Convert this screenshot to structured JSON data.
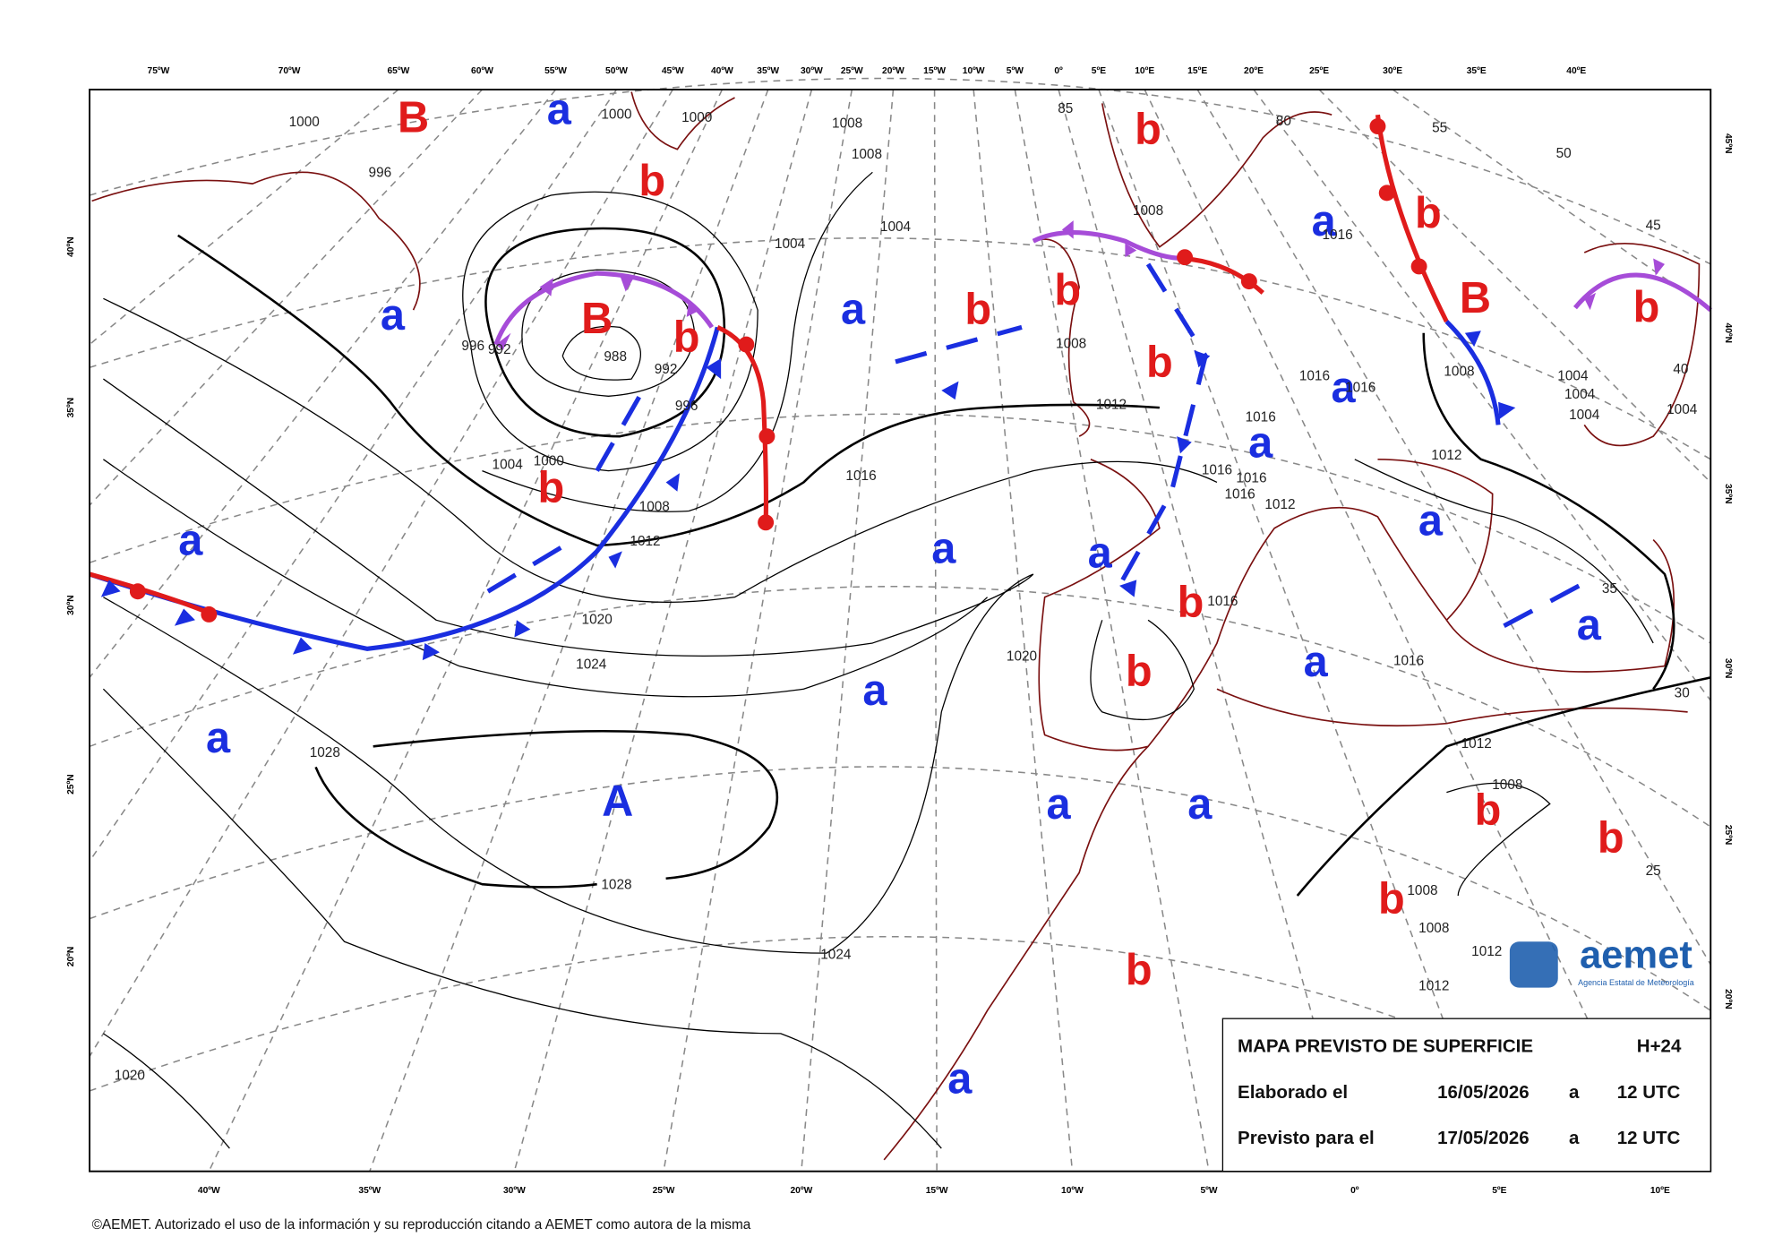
{
  "top_lon_labels": [
    "75ºW",
    "70ºW",
    "65ºW",
    "60ºW",
    "55ºW",
    "50ºW",
    "45ºW",
    "40ºW",
    "35ºW",
    "30ºW",
    "25ºW",
    "20ºW",
    "15ºW",
    "10ºW",
    "5ºW",
    "0º",
    "5ºE",
    "10ºE",
    "15ºE",
    "20ºE",
    "25ºE",
    "30ºE",
    "35ºE",
    "40ºE"
  ],
  "bottom_lon_labels": [
    "40ºW",
    "35ºW",
    "30ºW",
    "25ºW",
    "20ºW",
    "15ºW",
    "10ºW",
    "5ºW",
    "0º",
    "5ºE",
    "10ºE"
  ],
  "left_lat_labels": [
    "40ºN",
    "35ºN",
    "30ºN",
    "25ºN",
    "20ºN"
  ],
  "right_lat_labels": [
    "45ºN",
    "40ºN",
    "35ºN",
    "30ºN",
    "25ºN",
    "20ºN"
  ],
  "centers": [
    "B",
    "a",
    "b",
    "a",
    "B",
    "b",
    "b",
    "a",
    "a",
    "A",
    "a",
    "b",
    "b",
    "b",
    "a",
    "b",
    "B",
    "b",
    "b",
    "a",
    "a",
    "a",
    "a",
    "a",
    "b",
    "b",
    "a",
    "a",
    "a",
    "a",
    "a",
    "b",
    "b",
    "b",
    "b",
    "a"
  ],
  "isobar_labels": [
    "1000",
    "996",
    "1000",
    "1000",
    "1008",
    "1008",
    "1004",
    "1004",
    "996",
    "992",
    "988",
    "992",
    "996",
    "1000",
    "1004",
    "1008",
    "1012",
    "1016",
    "1020",
    "1024",
    "1028",
    "1028",
    "1024",
    "1020",
    "1020",
    "1008",
    "1008",
    "1012",
    "1016",
    "1016",
    "1016",
    "1016",
    "1016",
    "1016",
    "1012",
    "1016",
    "1016",
    "1012",
    "1012",
    "1008",
    "1008",
    "1008",
    "1012",
    "1012",
    "1004",
    "1004",
    "1004",
    "1004",
    "1008",
    "1016",
    "55",
    "50",
    "45",
    "40",
    "35",
    "30",
    "25",
    "85",
    "80"
  ],
  "info_box": {
    "title": "MAPA PREVISTO DE SUPERFICIE",
    "range": "H+24",
    "rows": [
      {
        "label": "Elaborado el",
        "date": "16/05/2026",
        "sep": "a",
        "time": "12 UTC"
      },
      {
        "label": "Previsto para el",
        "date": "17/05/2026",
        "sep": "a",
        "time": "12 UTC"
      }
    ]
  },
  "logo": {
    "name": "aemet",
    "subtitle": "Agencia Estatal de Meteorología"
  },
  "footer": "©AEMET. Autorizado el uso de la información y su reproducción citando a AEMET como autora de la misma"
}
